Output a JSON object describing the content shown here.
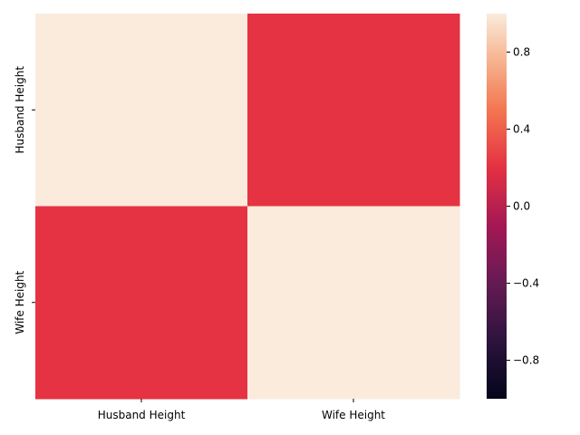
{
  "chart_data": {
    "type": "heatmap",
    "rows": [
      "Husband Height",
      "Wife Height"
    ],
    "columns": [
      "Husband Height",
      "Wife Height"
    ],
    "values": [
      [
        1.0,
        0.21
      ],
      [
        0.21,
        1.0
      ]
    ],
    "colorbar": {
      "vmin": -1.0,
      "vmax": 1.0,
      "ticks": [
        -0.8,
        -0.4,
        0.0,
        0.4,
        0.8
      ],
      "tick_labels": [
        "−0.8",
        "−0.4",
        "0.0",
        "0.4",
        "0.8"
      ]
    },
    "colormap": "rocket"
  }
}
